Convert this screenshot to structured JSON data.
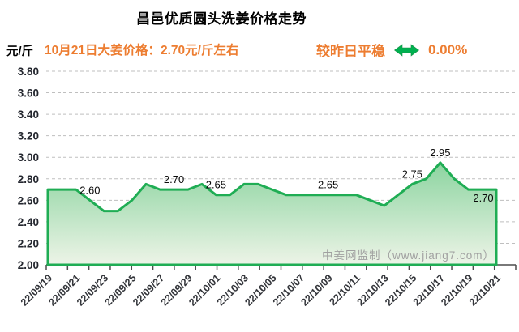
{
  "title": "昌邑优质圆头洗姜价格走势",
  "header": {
    "unit_label": "元/斤",
    "price_text": "10月21日大姜价格：2.70元/斤左右",
    "trend_label": "较昨日平稳",
    "trend_icon": "double-headed-arrow",
    "trend_percent": "0.00%",
    "accent_orange": "#ED7D31",
    "arrow_green": "#00B050"
  },
  "watermark": "中姜网监制（www.jiang7.com）",
  "chart_data": {
    "type": "area",
    "title": "昌邑优质圆头洗姜价格走势",
    "ylabel": "元/斤",
    "ylim": [
      2.0,
      3.8
    ],
    "grid": "dashed-horizontal",
    "legend": "none",
    "x": [
      "22/09/19",
      "22/09/20",
      "22/09/21",
      "22/09/22",
      "22/09/23",
      "22/09/24",
      "22/09/25",
      "22/09/26",
      "22/09/27",
      "22/09/28",
      "22/09/29",
      "22/09/30",
      "22/10/01",
      "22/10/02",
      "22/10/03",
      "22/10/04",
      "22/10/05",
      "22/10/06",
      "22/10/07",
      "22/10/08",
      "22/10/09",
      "22/10/10",
      "22/10/11",
      "22/10/12",
      "22/10/13",
      "22/10/14",
      "22/10/15",
      "22/10/16",
      "22/10/17",
      "22/10/18",
      "22/10/19",
      "22/10/20",
      "22/10/21"
    ],
    "values": [
      2.7,
      2.7,
      2.7,
      2.6,
      2.5,
      2.5,
      2.6,
      2.75,
      2.7,
      2.7,
      2.7,
      2.75,
      2.65,
      2.65,
      2.75,
      2.75,
      2.7,
      2.65,
      2.65,
      2.65,
      2.65,
      2.65,
      2.65,
      2.6,
      2.55,
      2.65,
      2.75,
      2.8,
      2.95,
      2.8,
      2.7,
      2.7,
      2.7
    ],
    "x_tick_labels": [
      "22/09/19",
      "22/09/21",
      "22/09/23",
      "22/09/25",
      "22/09/27",
      "22/09/29",
      "22/10/01",
      "22/10/03",
      "22/10/05",
      "22/10/07",
      "22/10/09",
      "22/10/11",
      "22/10/13",
      "22/10/15",
      "22/10/17",
      "22/10/19",
      "22/10/21"
    ],
    "y_tick_labels": [
      "3.80",
      "3.60",
      "3.40",
      "3.20",
      "3.00",
      "2.80",
      "2.60",
      "2.40",
      "2.20",
      "2.00"
    ],
    "point_labels": [
      {
        "index": 3,
        "text": "2.60"
      },
      {
        "index": 9,
        "text": "2.70"
      },
      {
        "index": 12,
        "text": "2.65"
      },
      {
        "index": 20,
        "text": "2.65"
      },
      {
        "index": 26,
        "text": "2.75"
      },
      {
        "index": 28,
        "text": "2.95"
      },
      {
        "index": 32,
        "text": "2.70",
        "dx": -16,
        "dy": 23
      }
    ],
    "line_color": "#1FAD54",
    "fill_top": "#8CD4A0",
    "fill_bottom": "#EDF4E7"
  }
}
